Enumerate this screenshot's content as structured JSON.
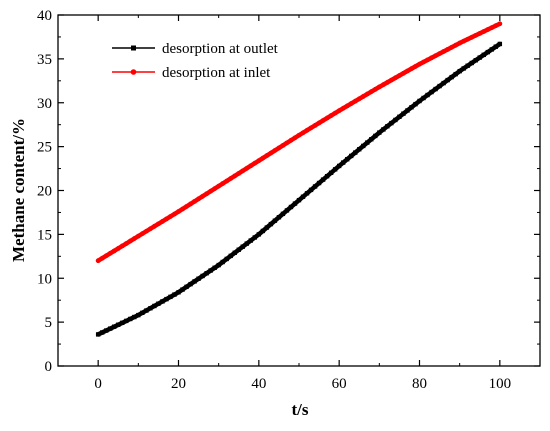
{
  "chart_data": {
    "type": "line",
    "xlabel": "t/s",
    "ylabel": "Methane content/%",
    "xlim": [
      -10,
      110
    ],
    "ylim": [
      0,
      40
    ],
    "xticks": [
      0,
      20,
      40,
      60,
      80,
      100
    ],
    "yticks": [
      0,
      5,
      10,
      15,
      20,
      25,
      30,
      35,
      40
    ],
    "grid": false,
    "legend_position": "top-left",
    "series": [
      {
        "name": "desorption at outlet",
        "color": "#000000",
        "marker": "square",
        "x": [
          0,
          10,
          20,
          30,
          40,
          50,
          60,
          70,
          80,
          90,
          100
        ],
        "y": [
          3.6,
          5.8,
          8.4,
          11.5,
          15.0,
          18.9,
          22.8,
          26.6,
          30.2,
          33.6,
          36.7
        ]
      },
      {
        "name": "desorption at inlet",
        "color": "#ff0000",
        "marker": "circle",
        "x": [
          0,
          10,
          20,
          30,
          40,
          50,
          60,
          70,
          80,
          90,
          100
        ],
        "y": [
          12.0,
          14.8,
          17.6,
          20.5,
          23.4,
          26.3,
          29.1,
          31.8,
          34.4,
          36.8,
          39.0
        ]
      }
    ]
  }
}
